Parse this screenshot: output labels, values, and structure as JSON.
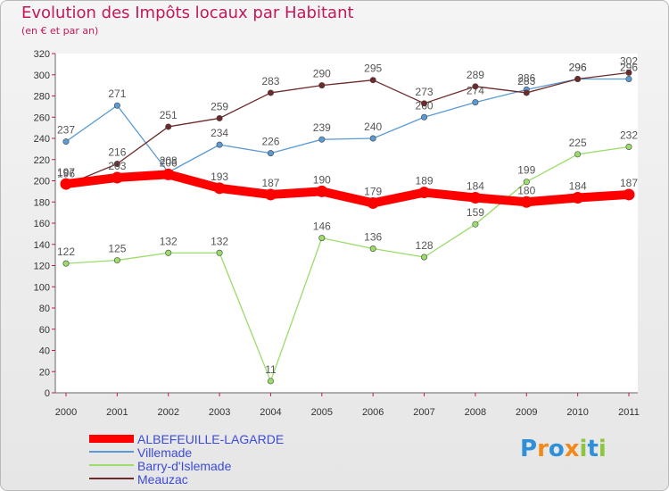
{
  "header": {
    "title": "Evolution des Impôts locaux par Habitant",
    "subtitle": "(en € et par an)"
  },
  "logo": {
    "text": "Proxiti",
    "letters": [
      {
        "ch": "P",
        "color": "#2f8fd8"
      },
      {
        "ch": "r",
        "color": "#f08a1c"
      },
      {
        "ch": "o",
        "color": "#2f8fd8"
      },
      {
        "ch": "x",
        "color": "#f08a1c"
      },
      {
        "ch": "i",
        "color": "#8cc63f"
      },
      {
        "ch": "t",
        "color": "#2f8fd8"
      },
      {
        "ch": "i",
        "color": "#8cc63f"
      }
    ]
  },
  "chart_data": {
    "type": "line",
    "x": [
      "2000",
      "2001",
      "2002",
      "2003",
      "2004",
      "2005",
      "2006",
      "2007",
      "2008",
      "2009",
      "2010",
      "2011"
    ],
    "ylim": [
      0,
      320
    ],
    "yticks": [
      0,
      20,
      40,
      60,
      80,
      100,
      120,
      140,
      160,
      180,
      200,
      220,
      240,
      260,
      280,
      300,
      320
    ],
    "grid": false,
    "legend_position": "bottom-left",
    "series": [
      {
        "name": "ALBEFEUILLE-LAGARDE",
        "color": "#ff0000",
        "values": [
          197,
          203,
          206,
          193,
          187,
          190,
          179,
          189,
          184,
          180,
          184,
          187
        ]
      },
      {
        "name": "Villemade",
        "color": "#5b9bd5",
        "values": [
          237,
          271,
          208,
          234,
          226,
          239,
          240,
          260,
          274,
          286,
          296,
          296
        ]
      },
      {
        "name": "Barry-d'Islemade",
        "color": "#9bdc6a",
        "values": [
          122,
          125,
          132,
          132,
          11,
          146,
          136,
          128,
          159,
          199,
          225,
          232
        ]
      },
      {
        "name": "Meauzac",
        "color": "#6e2a2a",
        "values": [
          196,
          216,
          251,
          259,
          283,
          290,
          295,
          273,
          289,
          283,
          296,
          302
        ]
      }
    ]
  }
}
